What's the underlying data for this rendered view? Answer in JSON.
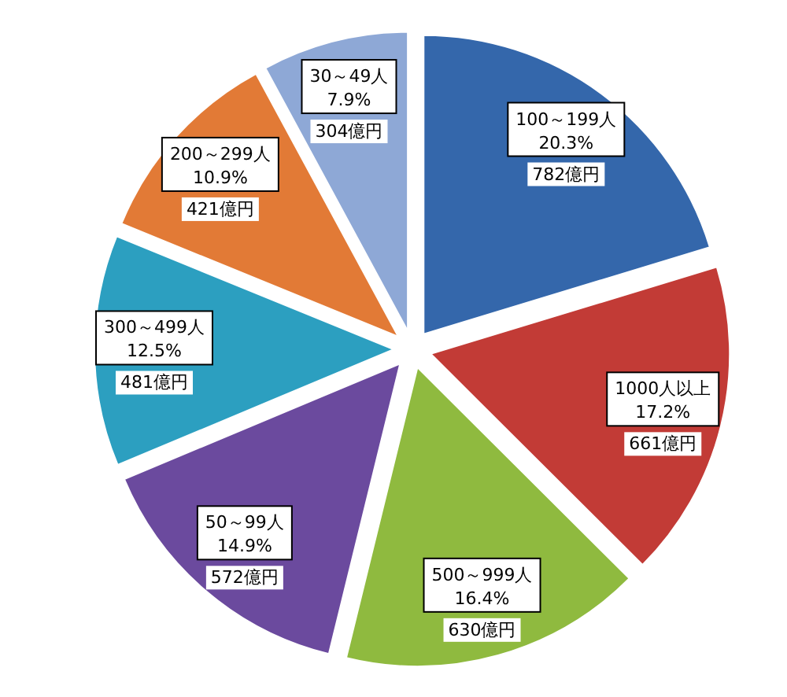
{
  "chart_data": {
    "type": "pie",
    "categories": [
      "100～199人",
      "1000人以上",
      "500～999人",
      "50～99人",
      "300～499人",
      "200～299人",
      "30～49人"
    ],
    "values": [
      782,
      661,
      630,
      572,
      481,
      421,
      304
    ],
    "value_labels": [
      "20.3%\n782億円",
      "17.2%\n661億円",
      "16.4%\n630億円",
      "14.9%\n572億円",
      "12.5%\n481億円",
      "10.9%\n421億円",
      "7.9%\n304億円"
    ],
    "colors": [
      "#3467ab",
      "#c23b36",
      "#8fba3f",
      "#6b4a9e",
      "#2c9fc0",
      "#e27a36",
      "#8ea8d6"
    ],
    "legend": false
  }
}
